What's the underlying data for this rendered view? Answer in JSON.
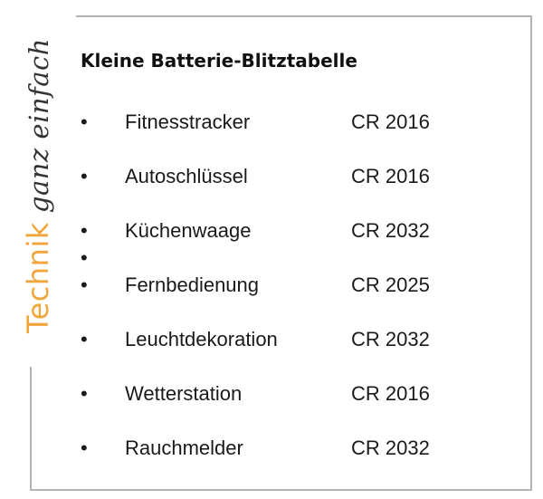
{
  "brand": {
    "highlight": "Technik",
    "rest": "ganz einfach"
  },
  "title": "Kleine Batterie-Blitztabelle",
  "bullet_symbol": "•",
  "items": [
    {
      "device": "Fitnesstracker",
      "battery": "CR 2016"
    },
    {
      "device": "Autoschlüssel",
      "battery": "CR 2016"
    },
    {
      "device": "Küchenwaage",
      "battery": "CR 2032"
    },
    {
      "device": "Fernbedienung",
      "battery": "CR 2025"
    },
    {
      "device": "Leuchtdekoration",
      "battery": "CR 2032"
    },
    {
      "device": "Wetterstation",
      "battery": "CR 2016"
    },
    {
      "device": "Rauchmelder",
      "battery": "CR 2032"
    }
  ],
  "colors": {
    "brand_accent": "#f0a63c",
    "frame": "#b3b3b3",
    "text": "#1a1a1a"
  }
}
